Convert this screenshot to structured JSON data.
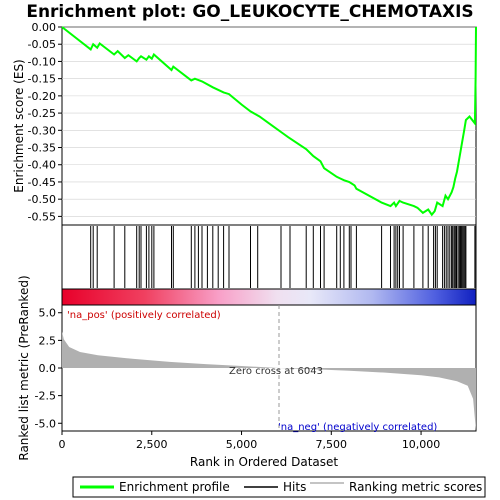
{
  "chart_data": {
    "type": "line",
    "title": "Enrichment plot: GO_LEUKOCYTE_CHEMOTAXIS",
    "xlabel": "Rank in Ordered Dataset",
    "top_panel": {
      "ylabel": "Enrichment score (ES)",
      "ylim": [
        -0.575,
        0.0
      ],
      "yticks": [
        0.0,
        -0.05,
        -0.1,
        -0.15,
        -0.2,
        -0.25,
        -0.3,
        -0.35,
        -0.4,
        -0.45,
        -0.5,
        -0.55
      ],
      "ytick_labels": [
        "0.00",
        "-0.05",
        "-0.10",
        "-0.15",
        "-0.20",
        "-0.25",
        "-0.30",
        "-0.35",
        "-0.40",
        "-0.45",
        "-0.50",
        "-0.55"
      ],
      "series": [
        {
          "name": "Enrichment profile",
          "color": "#00ff00",
          "x": [
            0,
            800,
            870,
            980,
            1050,
            1450,
            1550,
            1750,
            1850,
            2080,
            2150,
            2200,
            2350,
            2420,
            2500,
            2560,
            3050,
            3100,
            3600,
            3700,
            3900,
            4200,
            4500,
            4650,
            5000,
            5250,
            5500,
            6100,
            6300,
            6800,
            7000,
            7200,
            7300,
            7650,
            7750,
            7850,
            8000,
            8150,
            8200,
            8900,
            9150,
            9250,
            9300,
            9400,
            9500,
            9800,
            9900,
            10050,
            10200,
            10300,
            10380,
            10450,
            10600,
            10680,
            10750,
            10850,
            10900,
            10950,
            11000,
            11050,
            11100,
            11150,
            11200,
            11250,
            11350,
            11500,
            11520,
            11530
          ],
          "y": [
            0.0,
            -0.065,
            -0.05,
            -0.06,
            -0.048,
            -0.08,
            -0.07,
            -0.09,
            -0.082,
            -0.1,
            -0.09,
            -0.085,
            -0.095,
            -0.085,
            -0.092,
            -0.08,
            -0.125,
            -0.115,
            -0.155,
            -0.15,
            -0.158,
            -0.175,
            -0.19,
            -0.195,
            -0.225,
            -0.245,
            -0.26,
            -0.305,
            -0.32,
            -0.355,
            -0.375,
            -0.39,
            -0.41,
            -0.435,
            -0.44,
            -0.445,
            -0.45,
            -0.46,
            -0.47,
            -0.51,
            -0.52,
            -0.51,
            -0.52,
            -0.505,
            -0.51,
            -0.52,
            -0.525,
            -0.54,
            -0.53,
            -0.545,
            -0.535,
            -0.51,
            -0.52,
            -0.49,
            -0.5,
            -0.48,
            -0.465,
            -0.44,
            -0.42,
            -0.39,
            -0.36,
            -0.33,
            -0.3,
            -0.27,
            -0.26,
            -0.28,
            -0.15,
            0.0
          ]
        }
      ]
    },
    "hits_panel": {
      "name": "Hits",
      "positions": [
        800,
        870,
        980,
        1450,
        1750,
        2080,
        2150,
        2200,
        2350,
        2420,
        2500,
        2560,
        3050,
        3100,
        3600,
        3700,
        3800,
        3900,
        4050,
        4200,
        4350,
        4500,
        4650,
        5250,
        5450,
        6100,
        6350,
        6800,
        7000,
        7200,
        7300,
        7650,
        7750,
        7850,
        8000,
        8050,
        8200,
        8900,
        9150,
        9250,
        9300,
        9350,
        9400,
        9500,
        9800,
        10050,
        10200,
        10350,
        10400,
        10450,
        10600,
        10650,
        10700,
        10750,
        10800,
        10850,
        10880,
        10920,
        10950,
        10980,
        11000,
        11050,
        11080,
        11100,
        11130,
        11160,
        11190,
        11220,
        11250,
        11500,
        11530
      ]
    },
    "bottom_panel": {
      "ylabel": "Ranked list metric (PreRanked)",
      "ylim": [
        -5.7,
        5.7
      ],
      "yticks": [
        5.0,
        2.5,
        0.0,
        -2.5,
        -5.0
      ],
      "ytick_labels": [
        "5.0",
        "2.5",
        "0.0",
        "-2.5",
        "-5.0"
      ],
      "series_name": "Ranking metric scores",
      "x": [
        0,
        50,
        200,
        500,
        1000,
        2000,
        3000,
        4000,
        5000,
        6043,
        7000,
        8000,
        9000,
        10000,
        10500,
        11000,
        11300,
        11450,
        11530
      ],
      "y": [
        3.3,
        2.6,
        1.9,
        1.45,
        1.15,
        0.82,
        0.55,
        0.35,
        0.18,
        0.0,
        -0.12,
        -0.25,
        -0.42,
        -0.65,
        -0.85,
        -1.2,
        -1.6,
        -2.8,
        -5.7
      ],
      "zero_cross_label": "Zero cross at 6043",
      "zero_cross": 6043,
      "pos_label": "'na_pos' (positively correlated)",
      "neg_label": "'na_neg' (negatively correlated)"
    },
    "x_range": [
      0,
      11530
    ],
    "xticks": [
      0,
      2500,
      5000,
      7500,
      10000
    ],
    "xtick_labels": [
      "0",
      "2,500",
      "5,000",
      "7,500",
      "10,000"
    ],
    "legend": [
      "Enrichment profile",
      "Hits",
      "Ranking metric scores"
    ],
    "colors": {
      "profile": "#00ff00",
      "hits": "#000000",
      "metric_fill": "#b0b0b0",
      "pos_text": "#cc0000",
      "neg_text": "#0000cc",
      "grid": "#d0d0d0"
    }
  }
}
